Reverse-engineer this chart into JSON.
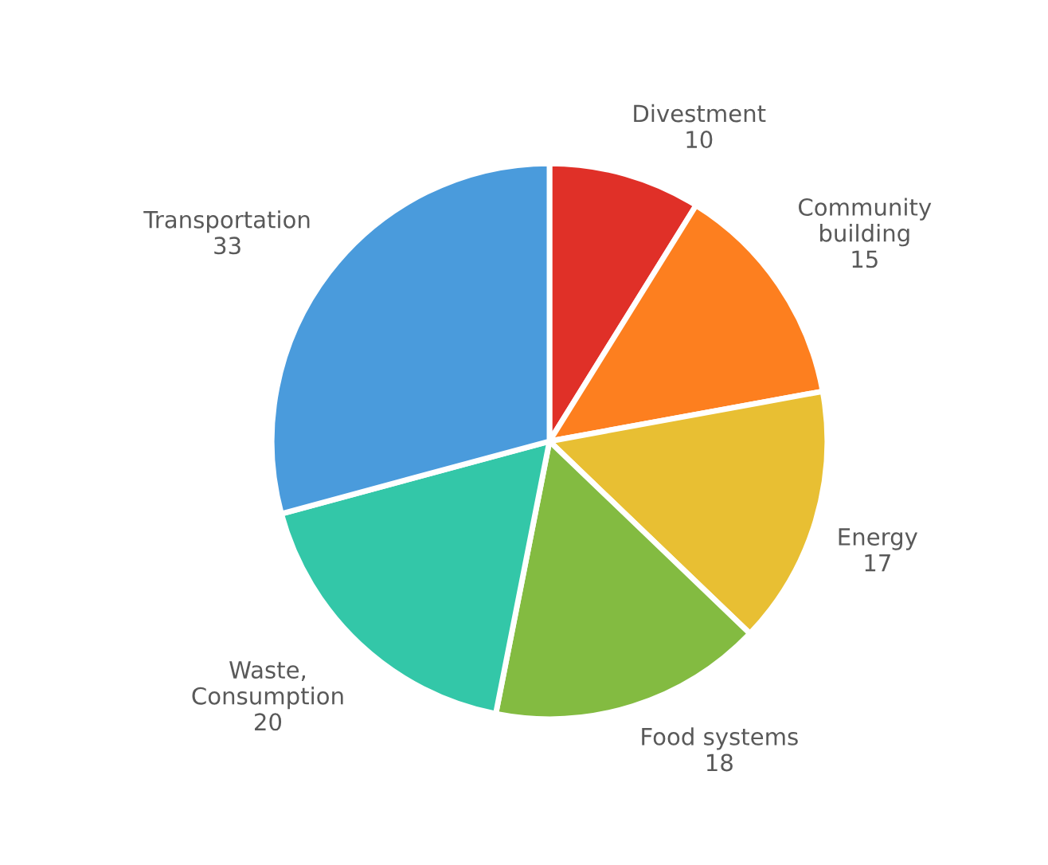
{
  "chart_data": {
    "type": "pie",
    "categories": [
      "Divestment",
      "Community building",
      "Energy",
      "Food systems",
      "Waste, Consumption",
      "Transportation"
    ],
    "values": [
      10,
      15,
      17,
      18,
      20,
      33
    ],
    "colors": [
      "#e03028",
      "#fd7f1f",
      "#e8bf33",
      "#83bb41",
      "#33c7a8",
      "#4a9bdc"
    ],
    "data_labels": true
  }
}
